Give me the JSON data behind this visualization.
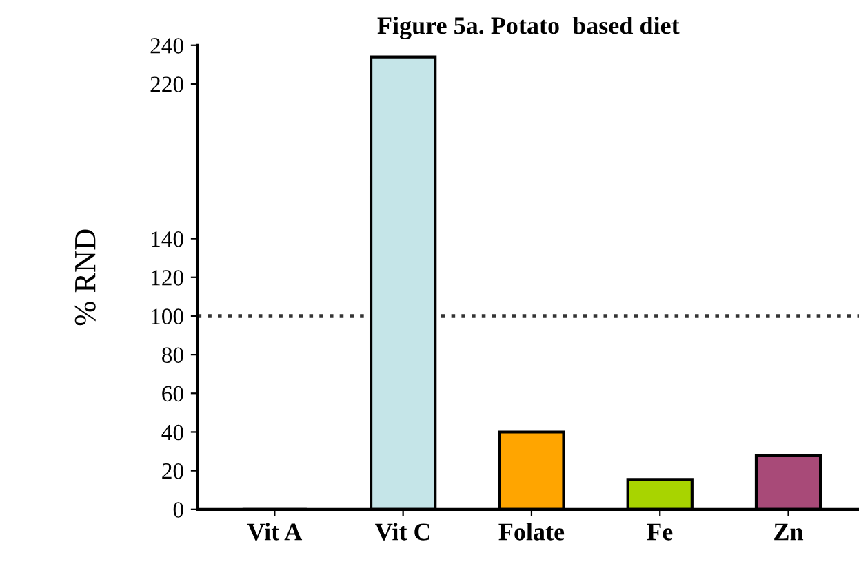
{
  "chart_data": {
    "type": "bar",
    "title": "Figure 5a. Potato  based diet",
    "ylabel": "% RND",
    "categories": [
      "Vit A",
      "Vit C",
      "Folate",
      "Fe",
      "Zn"
    ],
    "values": [
      0,
      234,
      40,
      15.5,
      28
    ],
    "colors": [
      "#c5e5e8",
      "#c5e5e8",
      "#ffa500",
      "#a8d400",
      "#a84a78"
    ],
    "ylim": [
      0,
      240
    ],
    "yticks": [
      0,
      20,
      40,
      60,
      80,
      100,
      120,
      140,
      220,
      240
    ],
    "ref_lines": [
      {
        "axis": "y",
        "value": 100,
        "line_style": "dotted",
        "color": "#333333"
      }
    ],
    "grid": false,
    "legend": false
  }
}
